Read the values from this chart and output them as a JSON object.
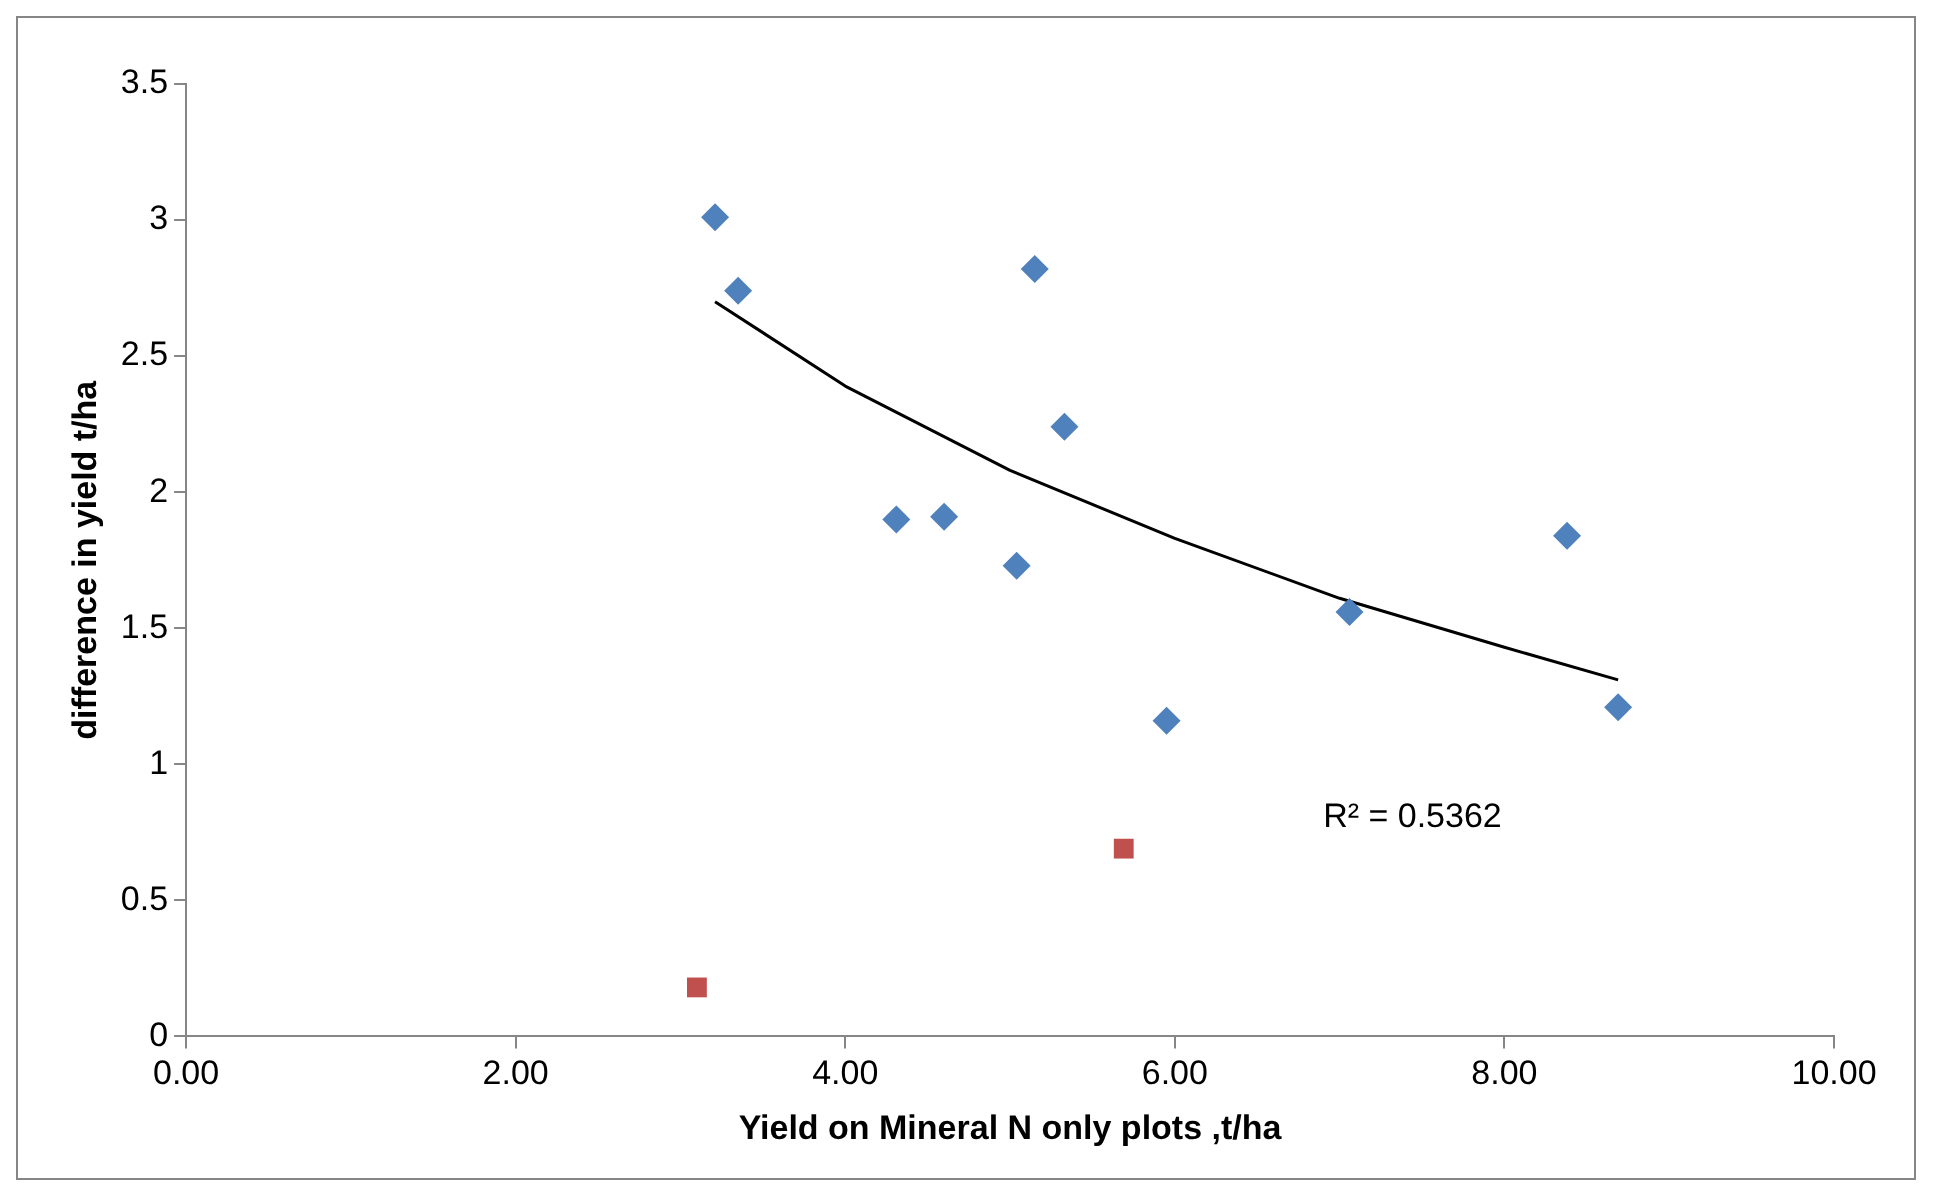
{
  "chart_data": {
    "type": "scatter",
    "xlabel": "Yield on Mineral N only plots ,t/ha",
    "ylabel": "difference in yield t/ha",
    "xlim": [
      0,
      10
    ],
    "xticks": [
      {
        "value": 0,
        "label": "0.00"
      },
      {
        "value": 2,
        "label": "2.00"
      },
      {
        "value": 4,
        "label": "4.00"
      },
      {
        "value": 6,
        "label": "6.00"
      },
      {
        "value": 8,
        "label": "8.00"
      },
      {
        "value": 10,
        "label": "10.00"
      }
    ],
    "ylim": [
      0,
      3.5
    ],
    "yticks": [
      0,
      0.5,
      1,
      1.5,
      2,
      2.5,
      3,
      3.5
    ],
    "grid": false,
    "legend": false,
    "annotations": [
      "R² = 0.5362"
    ],
    "series": [
      {
        "type": "scatter",
        "color": "#4f81bd",
        "marker": "diamond",
        "x": [
          3.21,
          3.35,
          4.31,
          4.6,
          5.15,
          5.33,
          5.04,
          5.95,
          7.06,
          8.38,
          8.69
        ],
        "values": [
          3.01,
          2.74,
          1.9,
          1.91,
          2.82,
          2.24,
          1.73,
          1.16,
          1.56,
          1.84,
          1.21
        ]
      },
      {
        "type": "scatter",
        "color": "#c0504d",
        "marker": "square",
        "x": [
          3.1,
          5.69
        ],
        "values": [
          0.18,
          0.69
        ]
      },
      {
        "type": "line",
        "color": "#000000",
        "marker": "none",
        "x": [
          3.21,
          4,
          5,
          6,
          7,
          8,
          8.69
        ],
        "values": [
          2.7,
          2.39,
          2.08,
          1.83,
          1.61,
          1.43,
          1.31
        ]
      }
    ]
  }
}
